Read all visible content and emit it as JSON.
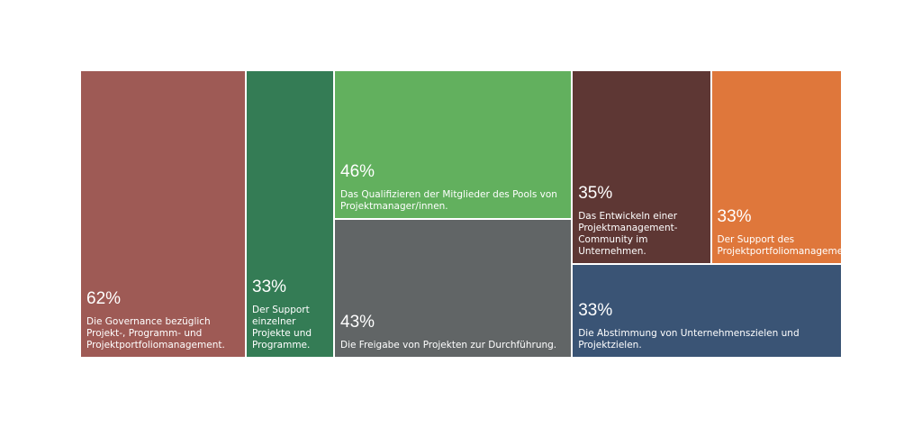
{
  "chart_data": {
    "type": "treemap",
    "categories": [
      "Die Governance bezüglich Projekt-, Programm- und Projektportfoliomanagement.",
      "Der Support einzelner Projekte und Programme.",
      "Das Qualifizieren der Mitglieder des Pools von Projektmanager/innen.",
      "Die Freigabe von Projekten zur Durchführung.",
      "Das Entwickeln einer Projektmanagement-Community im Unternehmen.",
      "Der Support des Projektportfoliomanagements.",
      "Die Abstimmung von Unternehmenszielen und Projektzielen."
    ],
    "values": [
      62,
      33,
      46,
      43,
      35,
      33,
      33
    ],
    "value_labels": [
      "62%",
      "33%",
      "46%",
      "43%",
      "35%",
      "33%",
      "33%"
    ],
    "colors": [
      "#9e5a55",
      "#347c55",
      "#62b05e",
      "#616566",
      "#5e3734",
      "#df773b",
      "#3a5475"
    ]
  }
}
